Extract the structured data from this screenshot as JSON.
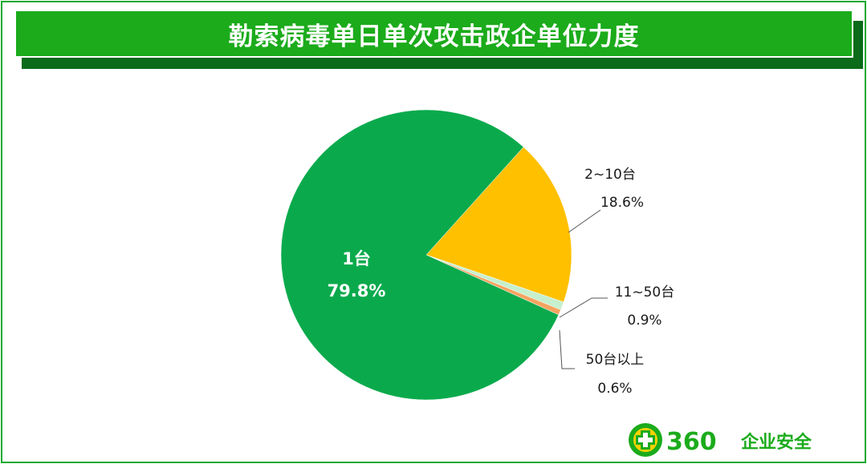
{
  "header": {
    "title": "勒索病毒单日单次攻击政企单位力度"
  },
  "logo": {
    "number": "360",
    "text": "企业安全",
    "icon": "360-plus-icon"
  },
  "colors": {
    "banner": "#1bab1b",
    "border": "#19a82e"
  },
  "chart_data": {
    "type": "pie",
    "title": "勒索病毒单日单次攻击政企单位力度",
    "start_angle_deg": 0,
    "slices": [
      {
        "label": "1台",
        "value": 79.8,
        "value_label": "79.8%",
        "color": "#0aaa4c"
      },
      {
        "label": "2~10台",
        "value": 18.6,
        "value_label": "18.6%",
        "color": "#ffc000"
      },
      {
        "label": "11~50台",
        "value": 0.9,
        "value_label": "0.9%",
        "color": "#c6efce"
      },
      {
        "label": "50台以上",
        "value": 0.6,
        "value_label": "0.6%",
        "color": "#f4a460"
      }
    ]
  }
}
